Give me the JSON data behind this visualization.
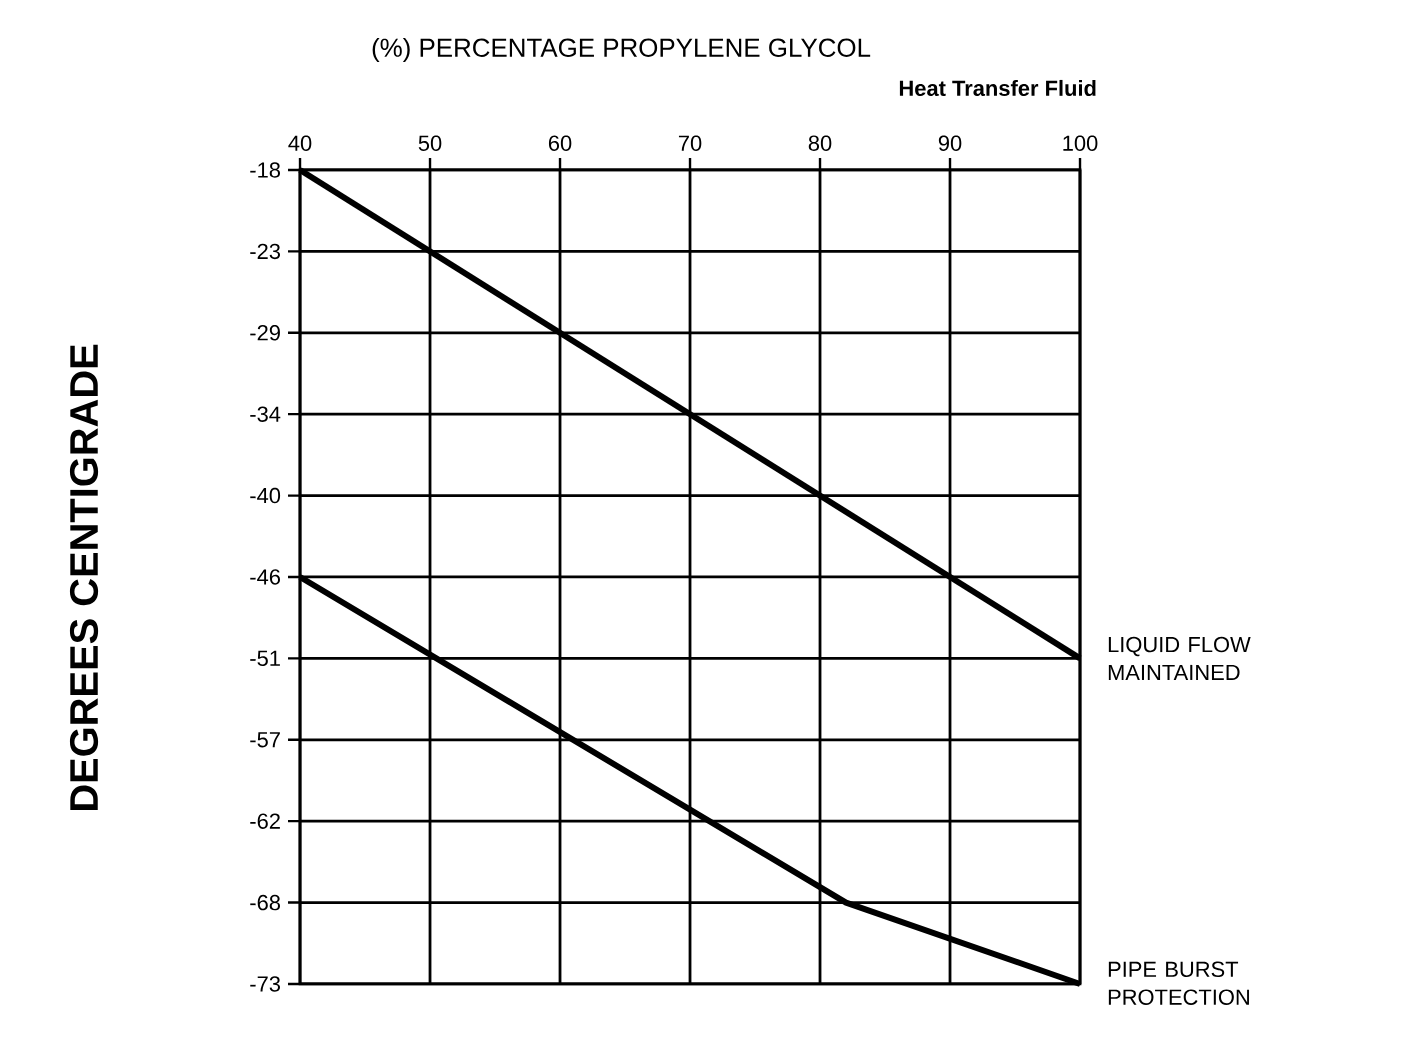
{
  "chart_data": {
    "type": "line",
    "title": "(%) PERCENTAGE PROPYLENE GLYCOL",
    "xlabel": "Heat Transfer Fluid",
    "ylabel": "DEGREES CENTIGRADE",
    "xlim": [
      40,
      100
    ],
    "xticks": [
      40,
      50,
      60,
      70,
      80,
      90,
      100
    ],
    "ylim": [
      -73,
      -18
    ],
    "yticks": [
      {
        "value": -18,
        "label": "-18"
      },
      {
        "value": -23.5,
        "label": "-23"
      },
      {
        "value": -29,
        "label": "-29"
      },
      {
        "value": -34.5,
        "label": "-34"
      },
      {
        "value": -40,
        "label": "-40"
      },
      {
        "value": -45.5,
        "label": "-46"
      },
      {
        "value": -51,
        "label": "-51"
      },
      {
        "value": -56.5,
        "label": "-57"
      },
      {
        "value": -62,
        "label": "-62"
      },
      {
        "value": -67.5,
        "label": "-68"
      },
      {
        "value": -73,
        "label": "-73"
      }
    ],
    "grid": true,
    "line_style": "solid",
    "series": [
      {
        "name": "LIQUID FLOW MAINTAINED",
        "color": "#000000",
        "x": [
          40,
          100
        ],
        "values": [
          -18,
          -51
        ]
      },
      {
        "name": "PIPE BURST PROTECTION",
        "color": "#000000",
        "x": [
          40,
          82,
          100
        ],
        "values": [
          -45.5,
          -67.5,
          -73
        ]
      }
    ]
  }
}
